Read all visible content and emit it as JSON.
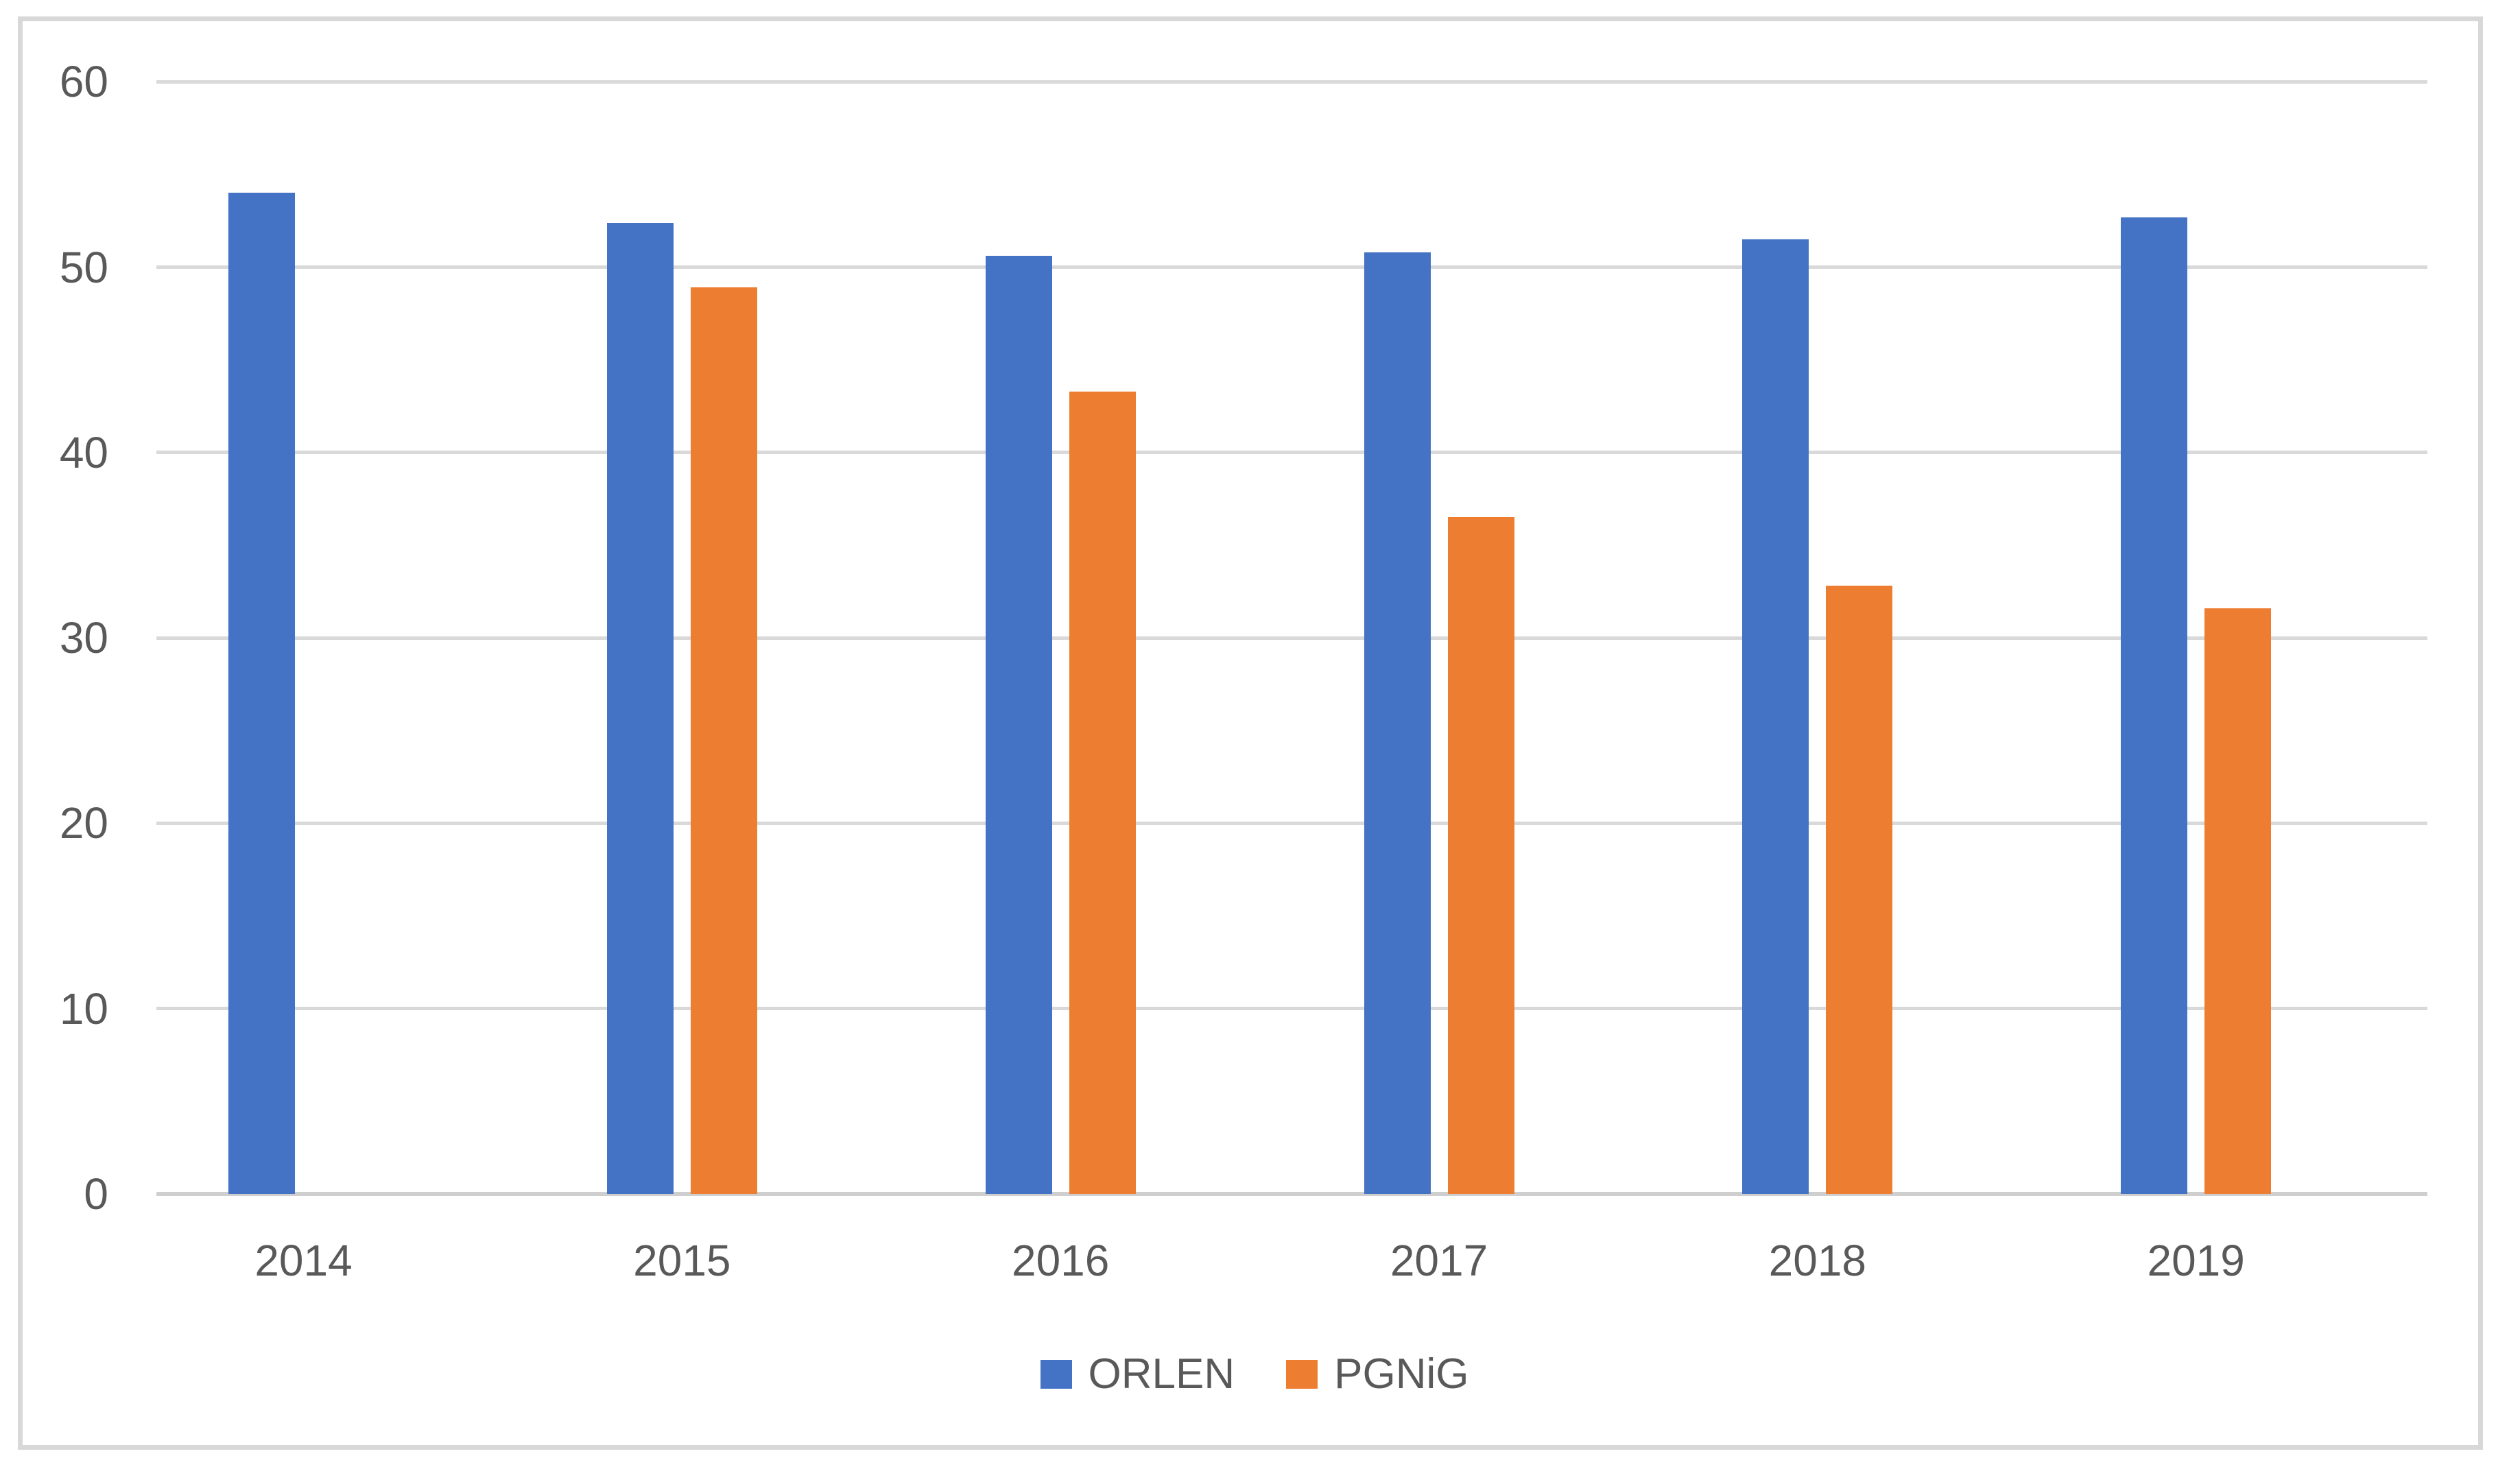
{
  "chart_data": {
    "type": "bar",
    "title": "",
    "xlabel": "",
    "ylabel": "",
    "categories": [
      "2014",
      "2015",
      "2016",
      "2017",
      "2018",
      "2019"
    ],
    "series": [
      {
        "name": "ORLEN",
        "color": "#4472C4",
        "values": [
          54.0,
          52.4,
          50.6,
          50.8,
          51.5,
          52.7
        ]
      },
      {
        "name": "PGNiG",
        "color": "#ED7D31",
        "values": [
          null,
          48.9,
          43.3,
          36.5,
          32.8,
          31.6
        ]
      }
    ],
    "ylim": [
      0,
      60
    ],
    "yticks": [
      0,
      10,
      20,
      30,
      40,
      50,
      60
    ],
    "ytick_labels": [
      "0",
      "10",
      "20",
      "30",
      "40",
      "50",
      "60"
    ],
    "grid": true,
    "legend_position": "bottom"
  },
  "colors": {
    "series_blue": "#4472C4",
    "series_orange": "#ED7D31",
    "gridline": "#D9D9D9",
    "axis_line": "#CFCFCF",
    "chart_border": "#D8D8D8",
    "text": "#595959",
    "background": "#FFFFFF"
  }
}
